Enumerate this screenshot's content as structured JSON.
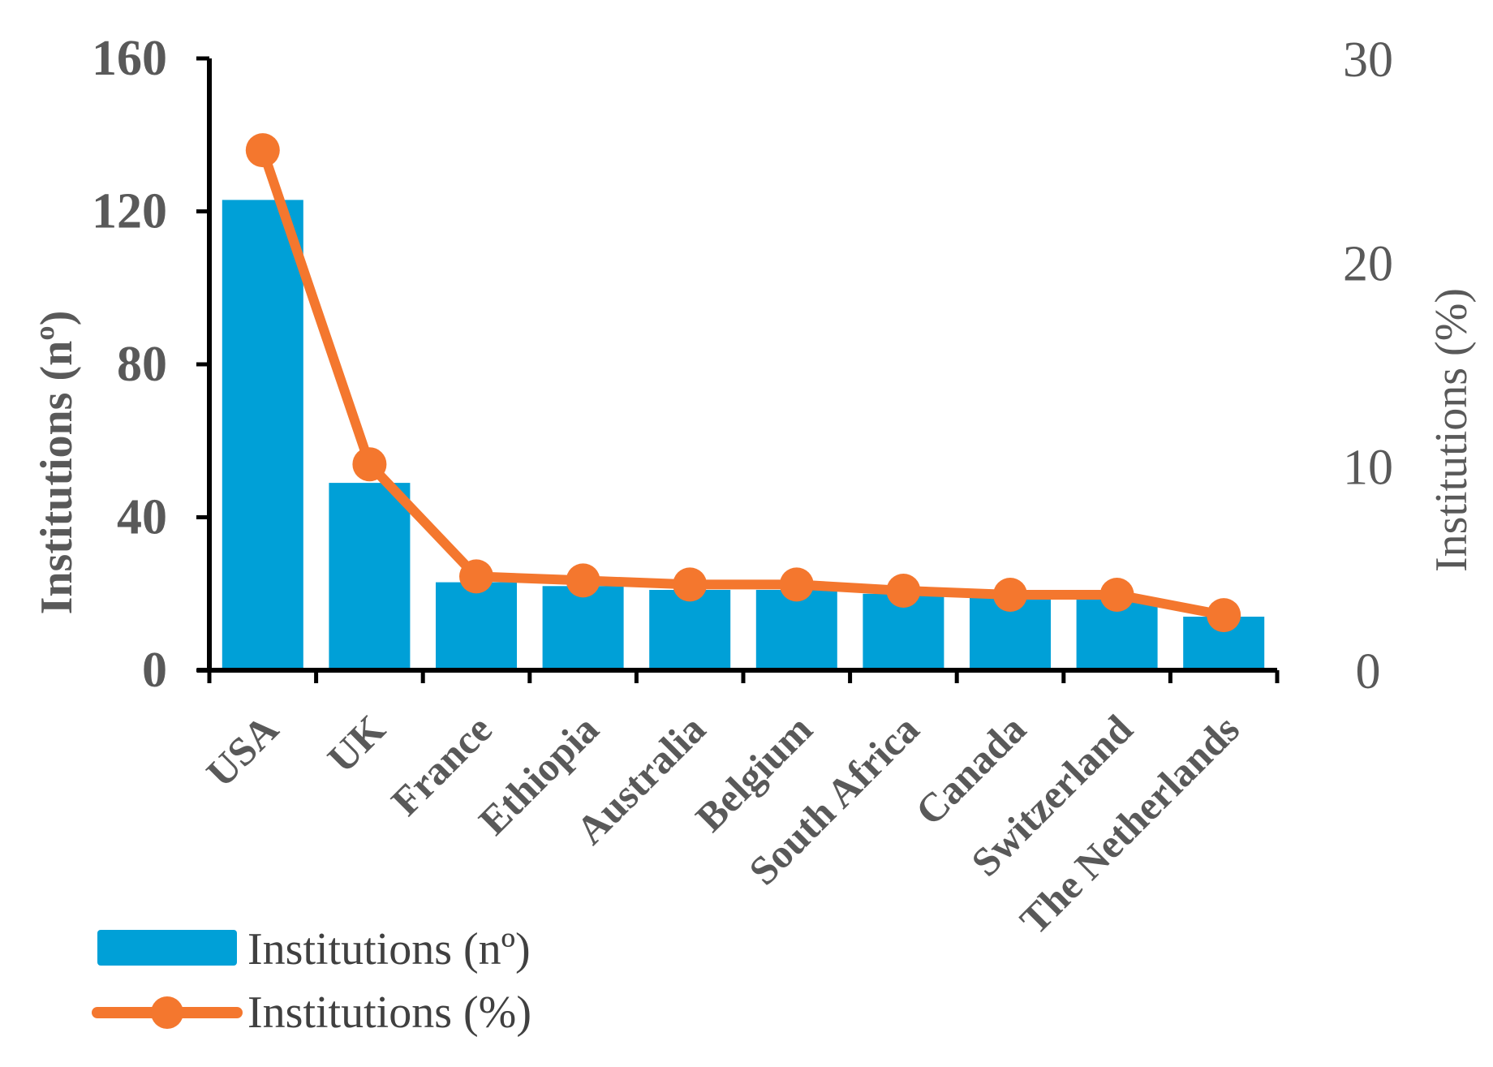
{
  "chart_data": {
    "type": "bar",
    "categories": [
      "USA",
      "UK",
      "France",
      "Ethiopia",
      "Australia",
      "Belgium",
      "South Africa",
      "Canada",
      "Switzerland",
      "The Netherlands"
    ],
    "series": [
      {
        "name": "Institutions (nº)",
        "type": "bar",
        "axis": "left",
        "color": "#00A0D7",
        "values": [
          123,
          49,
          23,
          22,
          21,
          21,
          20,
          19,
          19,
          14
        ]
      },
      {
        "name": "Institutions (%)",
        "type": "line",
        "axis": "right",
        "color": "#F4772E",
        "values": [
          25.5,
          10.1,
          4.6,
          4.4,
          4.2,
          4.2,
          3.9,
          3.7,
          3.7,
          2.7
        ]
      }
    ],
    "ylabel": "Institutions (nº)",
    "ylabel_right": "Institutions (%)",
    "ylim": [
      0,
      160
    ],
    "ylim_right": [
      0,
      30
    ],
    "yticks": [
      "0",
      "40",
      "80",
      "120",
      "160"
    ],
    "yticks_right": [
      "0",
      "10",
      "20",
      "30"
    ],
    "grid": false,
    "legend_position": "bottom-left"
  }
}
